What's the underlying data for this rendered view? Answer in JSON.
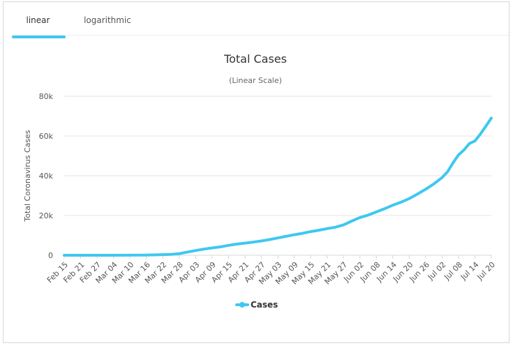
{
  "tabs": [
    {
      "label": "linear",
      "active": true
    },
    {
      "label": "logarithmic",
      "active": false
    }
  ],
  "colors": {
    "series": "#3ec8f0",
    "grid": "#e6e6e6",
    "tab_accent": "#3ec8f0"
  },
  "chart_data": {
    "type": "line",
    "title": "Total Cases",
    "subtitle": "(Linear Scale)",
    "xlabel": "",
    "ylabel": "Total Coronavirus Cases",
    "ylim": [
      0,
      80000
    ],
    "yticks": [
      0,
      20000,
      40000,
      60000,
      80000
    ],
    "ytick_labels": [
      "0",
      "20k",
      "40k",
      "60k",
      "80k"
    ],
    "grid": true,
    "legend_position": "bottom-center",
    "xtick_labels": [
      "Feb 15",
      "Feb 21",
      "Feb 27",
      "Mar 04",
      "Mar 10",
      "Mar 16",
      "Mar 22",
      "Mar 28",
      "Apr 03",
      "Apr 09",
      "Apr 15",
      "Apr 21",
      "Apr 27",
      "May 03",
      "May 09",
      "May 15",
      "May 21",
      "May 27",
      "Jun 02",
      "Jun 08",
      "Jun 14",
      "Jun 20",
      "Jun 26",
      "Jul 02",
      "Jul 08",
      "Jul 14",
      "Jul 20"
    ],
    "x_start": "Feb 15",
    "x_end": "Jul 20",
    "series": [
      {
        "name": "Cases",
        "points": [
          {
            "x": "Feb 15",
            "y": 0
          },
          {
            "x": "Feb 21",
            "y": 0
          },
          {
            "x": "Feb 27",
            "y": 0
          },
          {
            "x": "Mar 04",
            "y": 0
          },
          {
            "x": "Mar 10",
            "y": 30
          },
          {
            "x": "Mar 16",
            "y": 120
          },
          {
            "x": "Mar 22",
            "y": 300
          },
          {
            "x": "Mar 25",
            "y": 450
          },
          {
            "x": "Mar 28",
            "y": 800
          },
          {
            "x": "Mar 31",
            "y": 1600
          },
          {
            "x": "Apr 03",
            "y": 2400
          },
          {
            "x": "Apr 06",
            "y": 3100
          },
          {
            "x": "Apr 09",
            "y": 3700
          },
          {
            "x": "Apr 12",
            "y": 4200
          },
          {
            "x": "Apr 15",
            "y": 5000
          },
          {
            "x": "Apr 18",
            "y": 5600
          },
          {
            "x": "Apr 21",
            "y": 6100
          },
          {
            "x": "Apr 24",
            "y": 6600
          },
          {
            "x": "Apr 27",
            "y": 7200
          },
          {
            "x": "Apr 30",
            "y": 7900
          },
          {
            "x": "May 03",
            "y": 8700
          },
          {
            "x": "May 06",
            "y": 9500
          },
          {
            "x": "May 09",
            "y": 10300
          },
          {
            "x": "May 12",
            "y": 11000
          },
          {
            "x": "May 15",
            "y": 11900
          },
          {
            "x": "May 18",
            "y": 12600
          },
          {
            "x": "May 21",
            "y": 13400
          },
          {
            "x": "May 24",
            "y": 14100
          },
          {
            "x": "May 27",
            "y": 15300
          },
          {
            "x": "May 30",
            "y": 17200
          },
          {
            "x": "Jun 02",
            "y": 19000
          },
          {
            "x": "Jun 05",
            "y": 20200
          },
          {
            "x": "Jun 08",
            "y": 21800
          },
          {
            "x": "Jun 11",
            "y": 23400
          },
          {
            "x": "Jun 14",
            "y": 25200
          },
          {
            "x": "Jun 17",
            "y": 26700
          },
          {
            "x": "Jun 20",
            "y": 28500
          },
          {
            "x": "Jun 23",
            "y": 30800
          },
          {
            "x": "Jun 26",
            "y": 33200
          },
          {
            "x": "Jun 29",
            "y": 35900
          },
          {
            "x": "Jul 02",
            "y": 39100
          },
          {
            "x": "Jul 04",
            "y": 42000
          },
          {
            "x": "Jul 06",
            "y": 46500
          },
          {
            "x": "Jul 08",
            "y": 50500
          },
          {
            "x": "Jul 10",
            "y": 53000
          },
          {
            "x": "Jul 12",
            "y": 56200
          },
          {
            "x": "Jul 14",
            "y": 57500
          },
          {
            "x": "Jul 16",
            "y": 61000
          },
          {
            "x": "Jul 18",
            "y": 65000
          },
          {
            "x": "Jul 20",
            "y": 69000
          }
        ]
      }
    ]
  }
}
